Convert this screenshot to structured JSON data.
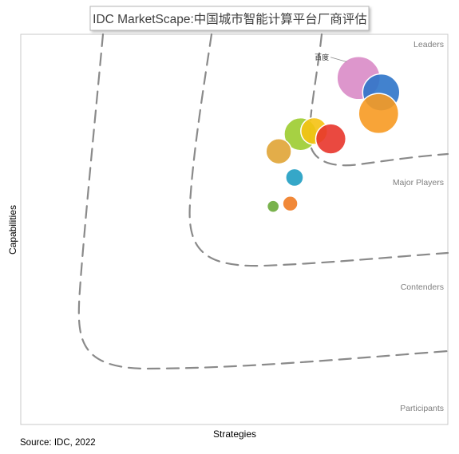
{
  "chart_data": {
    "type": "scatter",
    "title": "IDC MarketScape:中国城市智能计算平台厂商评估",
    "xlabel": "Strategies",
    "ylabel": "Capabilities",
    "source": "Source: IDC, 2022",
    "xlim": [
      0,
      100
    ],
    "ylim": [
      0,
      100
    ],
    "grid": false,
    "zones": [
      "Leaders",
      "Major Players",
      "Contenders",
      "Participants"
    ],
    "points": [
      {
        "label": "百度",
        "x": 79.1,
        "y": 88.8,
        "size": 1.0,
        "color": "#d98bc6"
      },
      {
        "label": "",
        "x": 84.4,
        "y": 85.1,
        "size": 0.86,
        "color": "#2e74c9"
      },
      {
        "label": "",
        "x": 83.8,
        "y": 79.7,
        "size": 0.93,
        "color": "#f79a22"
      },
      {
        "label": "",
        "x": 65.5,
        "y": 74.4,
        "size": 0.76,
        "color": "#9ccc2f"
      },
      {
        "label": "",
        "x": 68.7,
        "y": 75.2,
        "size": 0.62,
        "color": "#f5c212"
      },
      {
        "label": "",
        "x": 72.6,
        "y": 73.2,
        "size": 0.7,
        "color": "#e8352b"
      },
      {
        "label": "",
        "x": 60.4,
        "y": 70.0,
        "size": 0.59,
        "color": "#e0a435"
      },
      {
        "label": "",
        "x": 64.1,
        "y": 63.3,
        "size": 0.41,
        "color": "#1f9dc2"
      },
      {
        "label": "",
        "x": 63.1,
        "y": 56.6,
        "size": 0.35,
        "color": "#f07b22"
      },
      {
        "label": "",
        "x": 59.1,
        "y": 55.9,
        "size": 0.28,
        "color": "#6aaa3a"
      }
    ]
  },
  "colors": {
    "frame": "#c9c9c9",
    "boundary": "#8a8a8a",
    "zone_label": "#7f7f7f",
    "title_text": "#404040"
  }
}
